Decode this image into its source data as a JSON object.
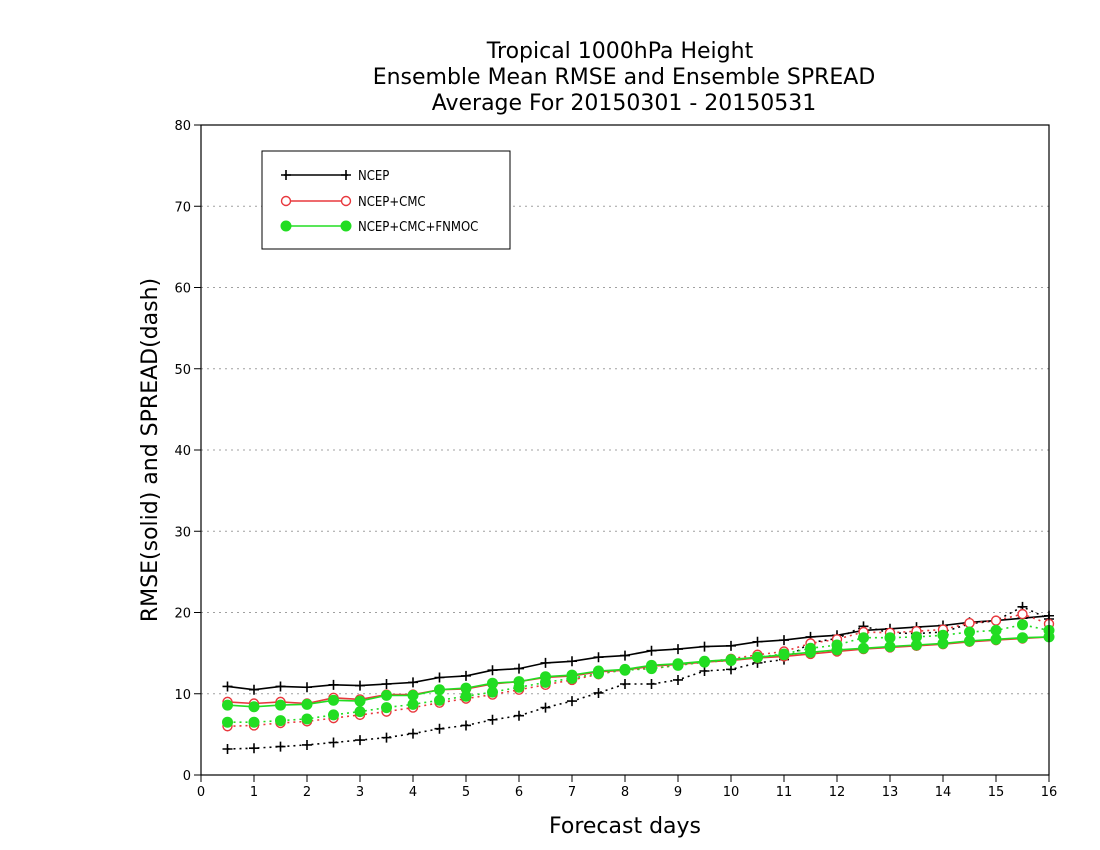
{
  "chart_data": {
    "type": "line",
    "title": [
      "Tropical 1000hPa Height",
      "Ensemble Mean RMSE and Ensemble SPREAD",
      "Average For 20150301 - 20150531"
    ],
    "xlabel": "Forecast days",
    "ylabel": "RMSE(solid) and SPREAD(dash)",
    "xlim": [
      0,
      16
    ],
    "ylim": [
      0,
      80
    ],
    "xticks": [
      0,
      1,
      2,
      3,
      4,
      5,
      6,
      7,
      8,
      9,
      10,
      11,
      12,
      13,
      14,
      15,
      16
    ],
    "yticks": [
      0,
      10,
      20,
      30,
      40,
      50,
      60,
      70,
      80
    ],
    "grid": "horizontal dotted",
    "legend_position": "top-left",
    "x": [
      0.5,
      1,
      1.5,
      2,
      2.5,
      3,
      3.5,
      4,
      4.5,
      5,
      5.5,
      6,
      6.5,
      7,
      7.5,
      8,
      8.5,
      9,
      9.5,
      10,
      10.5,
      11,
      11.5,
      12,
      12.5,
      13,
      13.5,
      14,
      14.5,
      15,
      15.5,
      16
    ],
    "series": [
      {
        "name": "NCEP",
        "color": "#000000",
        "marker": "plus",
        "rmse": [
          10.9,
          10.5,
          10.9,
          10.8,
          11.1,
          11.0,
          11.2,
          11.4,
          12.0,
          12.2,
          12.9,
          13.1,
          13.8,
          14.0,
          14.5,
          14.7,
          15.3,
          15.5,
          15.8,
          15.9,
          16.4,
          16.6,
          17.0,
          17.2,
          17.8,
          18.0,
          18.2,
          18.4,
          18.8,
          19.0,
          19.3,
          19.6
        ],
        "spread": [
          3.2,
          3.3,
          3.5,
          3.7,
          4.0,
          4.3,
          4.6,
          5.1,
          5.7,
          6.1,
          6.8,
          7.3,
          8.3,
          9.1,
          10.1,
          11.2,
          11.2,
          11.7,
          12.8,
          13.0,
          13.8,
          14.2,
          16.3,
          16.8,
          18.3,
          17.5,
          17.4,
          17.6,
          18.6,
          19.0,
          20.7,
          19.2
        ]
      },
      {
        "name": "NCEP+CMC",
        "color": "#e8383d",
        "marker": "open-circle",
        "rmse": [
          9.0,
          8.8,
          9.0,
          8.8,
          9.5,
          9.3,
          9.9,
          9.9,
          10.5,
          10.6,
          11.2,
          11.5,
          12.0,
          12.2,
          12.7,
          12.9,
          13.4,
          13.6,
          13.9,
          14.1,
          14.4,
          14.6,
          14.9,
          15.2,
          15.5,
          15.7,
          15.9,
          16.1,
          16.4,
          16.6,
          16.8,
          17.0
        ],
        "spread": [
          6.0,
          6.1,
          6.4,
          6.6,
          7.0,
          7.4,
          7.8,
          8.3,
          8.9,
          9.4,
          9.9,
          10.5,
          11.1,
          11.7,
          12.4,
          13.0,
          13.1,
          13.5,
          13.9,
          14.3,
          14.8,
          15.2,
          16.2,
          16.7,
          17.6,
          17.5,
          17.7,
          17.9,
          18.7,
          19.0,
          19.8,
          18.6
        ]
      },
      {
        "name": "NCEP+CMC+FNMOC",
        "color": "#22dd22",
        "marker": "filled-circle",
        "rmse": [
          8.6,
          8.4,
          8.6,
          8.7,
          9.2,
          9.1,
          9.8,
          9.8,
          10.5,
          10.7,
          11.3,
          11.5,
          12.1,
          12.3,
          12.8,
          13.0,
          13.5,
          13.7,
          14.0,
          14.2,
          14.5,
          14.8,
          15.1,
          15.4,
          15.6,
          15.8,
          16.0,
          16.2,
          16.5,
          16.7,
          16.9,
          17.0
        ],
        "spread": [
          6.5,
          6.5,
          6.7,
          6.9,
          7.4,
          7.8,
          8.3,
          8.7,
          9.2,
          9.7,
          10.2,
          10.8,
          11.4,
          11.9,
          12.5,
          12.9,
          13.1,
          13.5,
          13.9,
          14.1,
          14.5,
          14.9,
          15.6,
          16.0,
          16.9,
          16.9,
          17.0,
          17.2,
          17.6,
          17.8,
          18.5,
          17.8
        ]
      }
    ]
  }
}
